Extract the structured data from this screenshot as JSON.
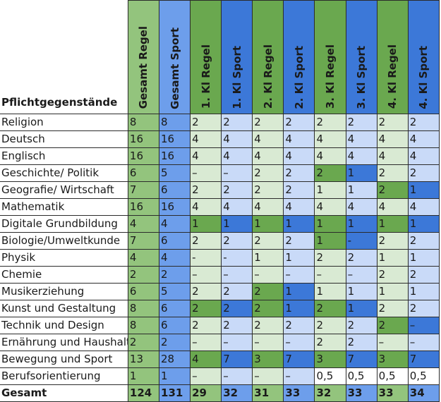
{
  "header_label": "Pflichtgegenstände",
  "columns": [
    "Gesamt Regel",
    "Gesamt Sport",
    "1. Kl Regel",
    "1. Kl Sport",
    "2. Kl Regel",
    "2. Kl Sport",
    "3. Kl Regel",
    "3. Kl Sport",
    "4. Kl Regel",
    "4. Kl Sport"
  ],
  "colors": {
    "header_green": "#93c47d",
    "header_blue": "#6d9eeb",
    "header_dark_green": "#6aa84f",
    "header_dark_blue": "#3c78d8",
    "total_green": "#93c47d",
    "total_blue": "#6d9eeb",
    "light_green": "#d9ead3",
    "light_blue": "#c9daf8",
    "mid_green": "#b6d7a8",
    "white": "#ffffff"
  },
  "rows": [
    {
      "label": "Religion",
      "cells": [
        {
          "v": "8",
          "c": "header_green"
        },
        {
          "v": "8",
          "c": "header_blue"
        },
        {
          "v": "2",
          "c": "light_green"
        },
        {
          "v": "2",
          "c": "light_blue"
        },
        {
          "v": "2",
          "c": "light_green"
        },
        {
          "v": "2",
          "c": "light_blue"
        },
        {
          "v": "2",
          "c": "light_green"
        },
        {
          "v": "2",
          "c": "light_blue"
        },
        {
          "v": "2",
          "c": "light_green"
        },
        {
          "v": "2",
          "c": "light_blue"
        }
      ]
    },
    {
      "label": "Deutsch",
      "cells": [
        {
          "v": "16",
          "c": "header_green"
        },
        {
          "v": "16",
          "c": "header_blue"
        },
        {
          "v": "4",
          "c": "light_green"
        },
        {
          "v": "4",
          "c": "light_blue"
        },
        {
          "v": "4",
          "c": "light_green"
        },
        {
          "v": "4",
          "c": "light_blue"
        },
        {
          "v": "4",
          "c": "light_green"
        },
        {
          "v": "4",
          "c": "light_blue"
        },
        {
          "v": "4",
          "c": "light_green"
        },
        {
          "v": "4",
          "c": "light_blue"
        }
      ]
    },
    {
      "label": "Englisch",
      "cells": [
        {
          "v": "16",
          "c": "header_green"
        },
        {
          "v": "16",
          "c": "header_blue"
        },
        {
          "v": "4",
          "c": "light_green"
        },
        {
          "v": "4",
          "c": "light_blue"
        },
        {
          "v": "4",
          "c": "light_green"
        },
        {
          "v": "4",
          "c": "light_blue"
        },
        {
          "v": "4",
          "c": "light_green"
        },
        {
          "v": "4",
          "c": "light_blue"
        },
        {
          "v": "4",
          "c": "light_green"
        },
        {
          "v": "4",
          "c": "light_blue"
        }
      ]
    },
    {
      "label": "Geschichte/ Politik",
      "cells": [
        {
          "v": "6",
          "c": "header_green"
        },
        {
          "v": "5",
          "c": "header_blue"
        },
        {
          "v": "–",
          "c": "light_green"
        },
        {
          "v": "–",
          "c": "light_blue"
        },
        {
          "v": "2",
          "c": "light_green"
        },
        {
          "v": "2",
          "c": "light_blue"
        },
        {
          "v": "2",
          "c": "header_dark_green"
        },
        {
          "v": "1",
          "c": "header_dark_blue"
        },
        {
          "v": "2",
          "c": "light_green"
        },
        {
          "v": "2",
          "c": "light_blue"
        }
      ]
    },
    {
      "label": "Geografie/ Wirtschaft",
      "cells": [
        {
          "v": "7",
          "c": "header_green"
        },
        {
          "v": "6",
          "c": "header_blue"
        },
        {
          "v": "2",
          "c": "light_green"
        },
        {
          "v": "2",
          "c": "light_blue"
        },
        {
          "v": "2",
          "c": "light_green"
        },
        {
          "v": "2",
          "c": "light_blue"
        },
        {
          "v": "1",
          "c": "light_green"
        },
        {
          "v": "1",
          "c": "light_blue"
        },
        {
          "v": "2",
          "c": "header_dark_green"
        },
        {
          "v": "1",
          "c": "header_dark_blue"
        }
      ]
    },
    {
      "label": "Mathematik",
      "cells": [
        {
          "v": "16",
          "c": "header_green"
        },
        {
          "v": "16",
          "c": "header_blue"
        },
        {
          "v": "4",
          "c": "light_green"
        },
        {
          "v": "4",
          "c": "light_blue"
        },
        {
          "v": "4",
          "c": "light_green"
        },
        {
          "v": "4",
          "c": "light_blue"
        },
        {
          "v": "4",
          "c": "light_green"
        },
        {
          "v": "4",
          "c": "light_blue"
        },
        {
          "v": "4",
          "c": "light_green"
        },
        {
          "v": "4",
          "c": "light_blue"
        }
      ]
    },
    {
      "label": "Digitale Grundbildung",
      "cells": [
        {
          "v": "4",
          "c": "header_green"
        },
        {
          "v": "4",
          "c": "header_blue"
        },
        {
          "v": "1",
          "c": "header_dark_green"
        },
        {
          "v": "1",
          "c": "header_dark_blue"
        },
        {
          "v": "1",
          "c": "header_dark_green"
        },
        {
          "v": "1",
          "c": "header_dark_blue"
        },
        {
          "v": "1",
          "c": "header_dark_green"
        },
        {
          "v": "1",
          "c": "header_dark_blue"
        },
        {
          "v": "1",
          "c": "header_dark_green"
        },
        {
          "v": "1",
          "c": "header_dark_blue"
        }
      ]
    },
    {
      "label": "Biologie/Umweltkunde",
      "cells": [
        {
          "v": "7",
          "c": "header_green"
        },
        {
          "v": "6",
          "c": "header_blue"
        },
        {
          "v": "2",
          "c": "light_green"
        },
        {
          "v": "2",
          "c": "light_blue"
        },
        {
          "v": "2",
          "c": "light_green"
        },
        {
          "v": "2",
          "c": "light_blue"
        },
        {
          "v": "1",
          "c": "header_dark_green"
        },
        {
          "v": "-",
          "c": "header_dark_blue"
        },
        {
          "v": "2",
          "c": "light_green"
        },
        {
          "v": "2",
          "c": "light_blue"
        }
      ]
    },
    {
      "label": "Physik",
      "cells": [
        {
          "v": "4",
          "c": "header_green"
        },
        {
          "v": "4",
          "c": "header_blue"
        },
        {
          "v": "-",
          "c": "light_green"
        },
        {
          "v": "-",
          "c": "light_blue"
        },
        {
          "v": "1",
          "c": "light_green"
        },
        {
          "v": "1",
          "c": "light_blue"
        },
        {
          "v": "2",
          "c": "light_green"
        },
        {
          "v": "2",
          "c": "light_blue"
        },
        {
          "v": "1",
          "c": "light_green"
        },
        {
          "v": "1",
          "c": "light_blue"
        }
      ]
    },
    {
      "label": "Chemie",
      "cells": [
        {
          "v": "2",
          "c": "header_green"
        },
        {
          "v": "2",
          "c": "header_blue"
        },
        {
          "v": "–",
          "c": "light_green"
        },
        {
          "v": "–",
          "c": "light_blue"
        },
        {
          "v": "–",
          "c": "light_green"
        },
        {
          "v": "–",
          "c": "light_blue"
        },
        {
          "v": "–",
          "c": "light_green"
        },
        {
          "v": "–",
          "c": "light_blue"
        },
        {
          "v": "2",
          "c": "light_green"
        },
        {
          "v": "2",
          "c": "light_blue"
        }
      ]
    },
    {
      "label": "Musikerziehung",
      "cells": [
        {
          "v": "6",
          "c": "header_green"
        },
        {
          "v": "5",
          "c": "header_blue"
        },
        {
          "v": "2",
          "c": "light_green"
        },
        {
          "v": "2",
          "c": "light_blue"
        },
        {
          "v": "2",
          "c": "header_dark_green"
        },
        {
          "v": "1",
          "c": "header_dark_blue"
        },
        {
          "v": "1",
          "c": "light_green"
        },
        {
          "v": "1",
          "c": "light_blue"
        },
        {
          "v": "1",
          "c": "light_green"
        },
        {
          "v": "1",
          "c": "light_blue"
        }
      ]
    },
    {
      "label": "Kunst und Gestaltung",
      "cells": [
        {
          "v": "8",
          "c": "header_green"
        },
        {
          "v": "6",
          "c": "header_blue"
        },
        {
          "v": "2",
          "c": "header_dark_green"
        },
        {
          "v": "2",
          "c": "header_dark_blue"
        },
        {
          "v": "2",
          "c": "header_dark_green"
        },
        {
          "v": "1",
          "c": "header_dark_blue"
        },
        {
          "v": "2",
          "c": "header_dark_green"
        },
        {
          "v": "1",
          "c": "header_dark_blue"
        },
        {
          "v": "2",
          "c": "light_green"
        },
        {
          "v": "2",
          "c": "light_blue"
        }
      ]
    },
    {
      "label": "Technik und Design",
      "cells": [
        {
          "v": "8",
          "c": "header_green"
        },
        {
          "v": "6",
          "c": "header_blue"
        },
        {
          "v": "2",
          "c": "light_green"
        },
        {
          "v": "2",
          "c": "light_blue"
        },
        {
          "v": "2",
          "c": "light_green"
        },
        {
          "v": "2",
          "c": "light_blue"
        },
        {
          "v": "2",
          "c": "light_green"
        },
        {
          "v": "2",
          "c": "light_blue"
        },
        {
          "v": "2",
          "c": "header_dark_green"
        },
        {
          "v": "–",
          "c": "header_dark_blue"
        }
      ]
    },
    {
      "label": "Ernährung und Haushalt",
      "cells": [
        {
          "v": "2",
          "c": "header_green"
        },
        {
          "v": "2",
          "c": "header_blue"
        },
        {
          "v": "–",
          "c": "light_green"
        },
        {
          "v": "–",
          "c": "light_blue"
        },
        {
          "v": "–",
          "c": "light_green"
        },
        {
          "v": "–",
          "c": "light_blue"
        },
        {
          "v": "2",
          "c": "light_green"
        },
        {
          "v": "2",
          "c": "light_blue"
        },
        {
          "v": "–",
          "c": "light_green"
        },
        {
          "v": "–",
          "c": "light_blue"
        }
      ]
    },
    {
      "label": "Bewegung und Sport",
      "cells": [
        {
          "v": "13",
          "c": "header_green"
        },
        {
          "v": "28",
          "c": "header_blue"
        },
        {
          "v": "4",
          "c": "header_dark_green"
        },
        {
          "v": "7",
          "c": "header_dark_blue"
        },
        {
          "v": "3",
          "c": "header_dark_green"
        },
        {
          "v": "7",
          "c": "header_dark_blue"
        },
        {
          "v": "3",
          "c": "header_dark_green"
        },
        {
          "v": "7",
          "c": "header_dark_blue"
        },
        {
          "v": "3",
          "c": "header_dark_green"
        },
        {
          "v": "7",
          "c": "header_dark_blue"
        }
      ]
    },
    {
      "label": "Berufsorientierung",
      "cells": [
        {
          "v": "1",
          "c": "header_green"
        },
        {
          "v": "1",
          "c": "header_blue"
        },
        {
          "v": "–",
          "c": "light_green"
        },
        {
          "v": "–",
          "c": "light_blue"
        },
        {
          "v": "–",
          "c": "light_green"
        },
        {
          "v": "–",
          "c": "light_blue"
        },
        {
          "v": "0,5",
          "c": "white"
        },
        {
          "v": "0,5",
          "c": "white"
        },
        {
          "v": "0,5",
          "c": "white"
        },
        {
          "v": "0,5",
          "c": "white"
        }
      ]
    }
  ],
  "total": {
    "label": "Gesamt",
    "cells": [
      {
        "v": "124",
        "c": "total_green"
      },
      {
        "v": "131",
        "c": "total_blue"
      },
      {
        "v": "29",
        "c": "total_green"
      },
      {
        "v": "32",
        "c": "total_blue"
      },
      {
        "v": "31",
        "c": "total_green"
      },
      {
        "v": "33",
        "c": "total_blue"
      },
      {
        "v": "32",
        "c": "total_green"
      },
      {
        "v": "33",
        "c": "total_blue"
      },
      {
        "v": "33",
        "c": "total_green"
      },
      {
        "v": "34",
        "c": "total_blue"
      }
    ]
  }
}
